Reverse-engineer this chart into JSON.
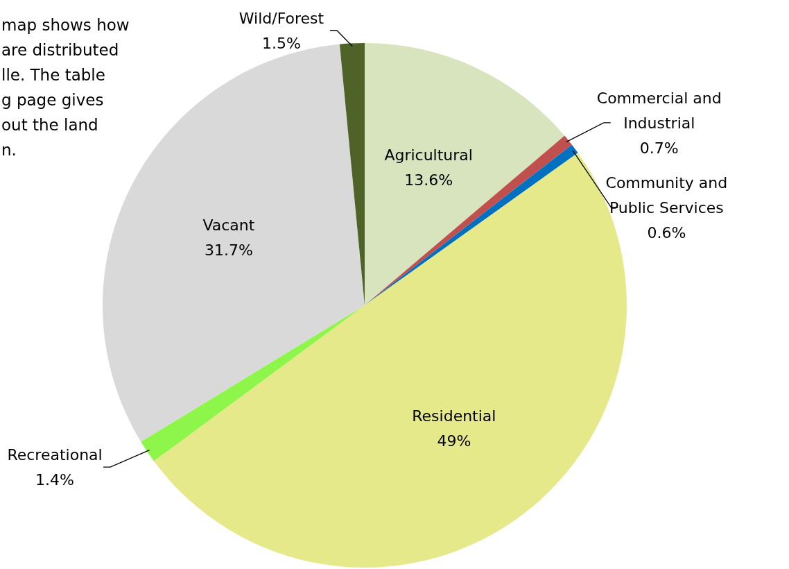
{
  "chart_data": {
    "type": "pie",
    "categories": [
      "Agricultural",
      "Commercial and Industrial",
      "Community and Public Services",
      "Residential",
      "Recreational",
      "Vacant",
      "Wild/Forest"
    ],
    "values": [
      13.6,
      0.7,
      0.6,
      49,
      1.4,
      31.7,
      1.5
    ],
    "value_labels": [
      "13.6%",
      "0.7%",
      "0.6%",
      "49%",
      "1.4%",
      "31.7%",
      "1.5%"
    ],
    "colors": [
      "#d7e4bd",
      "#c0504d",
      "#0070c0",
      "#e6e98a",
      "#8ef54a",
      "#d9d9d9",
      "#4f6228"
    ],
    "annotations": [
      "map shows how\nare distributed\nlle.  The table\ng page gives\nout the land\nn."
    ]
  }
}
